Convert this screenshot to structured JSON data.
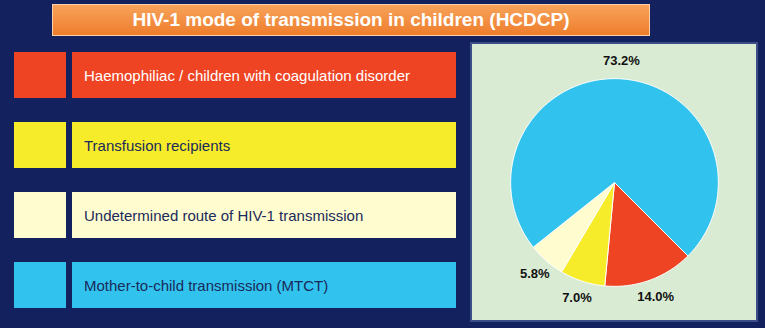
{
  "chart_data": {
    "type": "pie",
    "title": "HIV-1 mode of transmission in children (HCDCP)",
    "categories": [
      "Haemophiliac  / children with coagulation disorder",
      "Transfusion recipients",
      "Undetermined  route of HIV-1 transmission",
      "Mother-to-child transmission (MTCT)"
    ],
    "values": [
      14,
      7,
      5.8,
      73.2
    ],
    "value_labels": [
      "14.0%",
      "7.0%",
      "5.8%",
      "73.2%"
    ],
    "colors": [
      "#ee4423",
      "#f7ec2a",
      "#fffcd0",
      "#31c3ee"
    ],
    "data_labels": true,
    "legend": "left"
  }
}
